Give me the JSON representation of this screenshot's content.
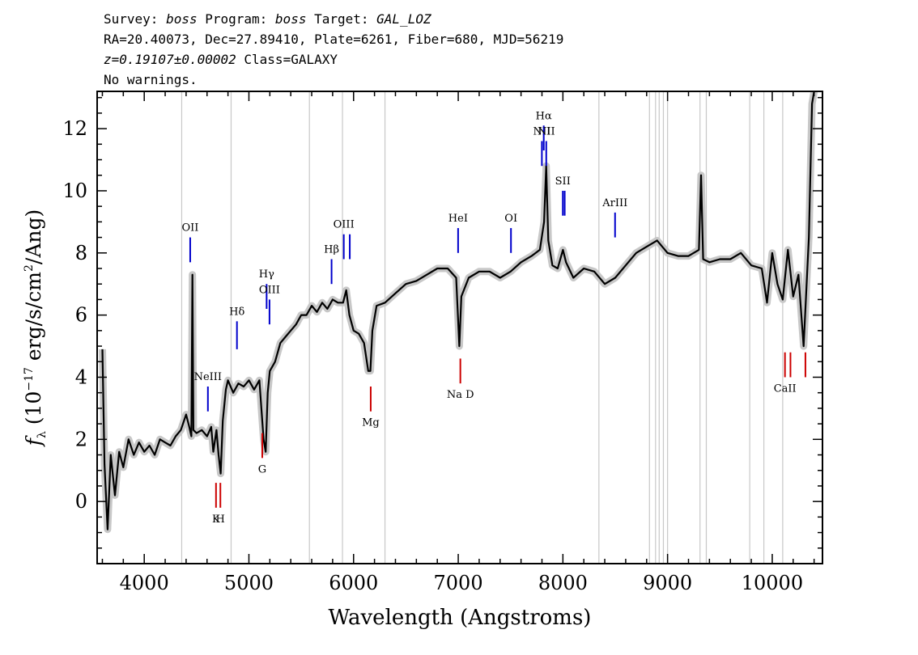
{
  "header": {
    "line1": {
      "survey_label": "Survey: ",
      "survey": "boss",
      "program_label": " Program: ",
      "program": "boss",
      "target_label": " Target: ",
      "target": "GAL_LOZ"
    },
    "line2": "RA=20.40073, Dec=27.89410, Plate=6261, Fiber=680, MJD=56219",
    "line3": {
      "z": "z=0.19107±0.00002",
      "class": " Class=GALAXY"
    },
    "line4": "No warnings."
  },
  "chart_data": {
    "type": "line",
    "xlabel": "Wavelength (Angstroms)",
    "ylabel": "f_λ (10^-17 erg/s/cm^2/Ang)",
    "xlim": [
      3550,
      10480
    ],
    "ylim": [
      -2,
      13.2
    ],
    "xticks": [
      4000,
      5000,
      6000,
      7000,
      8000,
      9000,
      10000
    ],
    "yticks": [
      0,
      2,
      4,
      6,
      8,
      10,
      12
    ],
    "grid": false,
    "series": [
      {
        "color": "#000000",
        "points": [
          [
            3600,
            4.9
          ],
          [
            3620,
            1.2
          ],
          [
            3650,
            -0.9
          ],
          [
            3680,
            1.5
          ],
          [
            3720,
            0.2
          ],
          [
            3760,
            1.6
          ],
          [
            3800,
            1.1
          ],
          [
            3850,
            2.0
          ],
          [
            3900,
            1.5
          ],
          [
            3950,
            1.9
          ],
          [
            4000,
            1.6
          ],
          [
            4050,
            1.8
          ],
          [
            4100,
            1.5
          ],
          [
            4150,
            2.0
          ],
          [
            4200,
            1.9
          ],
          [
            4250,
            1.8
          ],
          [
            4300,
            2.1
          ],
          [
            4350,
            2.3
          ],
          [
            4400,
            2.8
          ],
          [
            4430,
            2.4
          ],
          [
            4450,
            2.1
          ],
          [
            4460,
            7.3
          ],
          [
            4470,
            2.3
          ],
          [
            4500,
            2.2
          ],
          [
            4550,
            2.3
          ],
          [
            4600,
            2.1
          ],
          [
            4640,
            2.4
          ],
          [
            4660,
            1.6
          ],
          [
            4690,
            2.3
          ],
          [
            4710,
            1.5
          ],
          [
            4730,
            0.9
          ],
          [
            4750,
            2.6
          ],
          [
            4780,
            3.6
          ],
          [
            4800,
            3.9
          ],
          [
            4850,
            3.5
          ],
          [
            4900,
            3.8
          ],
          [
            4950,
            3.7
          ],
          [
            5000,
            3.9
          ],
          [
            5050,
            3.6
          ],
          [
            5100,
            3.9
          ],
          [
            5140,
            2.0
          ],
          [
            5160,
            1.6
          ],
          [
            5180,
            3.5
          ],
          [
            5200,
            4.2
          ],
          [
            5250,
            4.5
          ],
          [
            5300,
            5.1
          ],
          [
            5350,
            5.3
          ],
          [
            5400,
            5.5
          ],
          [
            5450,
            5.7
          ],
          [
            5500,
            6.0
          ],
          [
            5550,
            6.0
          ],
          [
            5600,
            6.3
          ],
          [
            5650,
            6.1
          ],
          [
            5700,
            6.4
          ],
          [
            5750,
            6.2
          ],
          [
            5800,
            6.5
          ],
          [
            5850,
            6.4
          ],
          [
            5900,
            6.4
          ],
          [
            5930,
            6.8
          ],
          [
            5960,
            6.0
          ],
          [
            6000,
            5.5
          ],
          [
            6050,
            5.4
          ],
          [
            6100,
            5.1
          ],
          [
            6140,
            4.2
          ],
          [
            6160,
            4.2
          ],
          [
            6180,
            5.5
          ],
          [
            6220,
            6.3
          ],
          [
            6300,
            6.4
          ],
          [
            6400,
            6.7
          ],
          [
            6500,
            7.0
          ],
          [
            6600,
            7.1
          ],
          [
            6700,
            7.3
          ],
          [
            6800,
            7.5
          ],
          [
            6900,
            7.5
          ],
          [
            6980,
            7.2
          ],
          [
            7010,
            5.0
          ],
          [
            7030,
            6.6
          ],
          [
            7100,
            7.2
          ],
          [
            7200,
            7.4
          ],
          [
            7300,
            7.4
          ],
          [
            7400,
            7.2
          ],
          [
            7500,
            7.4
          ],
          [
            7600,
            7.7
          ],
          [
            7700,
            7.9
          ],
          [
            7780,
            8.1
          ],
          [
            7820,
            9.0
          ],
          [
            7840,
            10.8
          ],
          [
            7860,
            8.4
          ],
          [
            7900,
            7.6
          ],
          [
            7950,
            7.5
          ],
          [
            8000,
            8.1
          ],
          [
            8030,
            7.7
          ],
          [
            8100,
            7.2
          ],
          [
            8200,
            7.5
          ],
          [
            8300,
            7.4
          ],
          [
            8400,
            7.0
          ],
          [
            8500,
            7.2
          ],
          [
            8600,
            7.6
          ],
          [
            8700,
            8.0
          ],
          [
            8800,
            8.2
          ],
          [
            8900,
            8.4
          ],
          [
            9000,
            8.0
          ],
          [
            9100,
            7.9
          ],
          [
            9200,
            7.9
          ],
          [
            9300,
            8.1
          ],
          [
            9320,
            10.5
          ],
          [
            9340,
            7.8
          ],
          [
            9400,
            7.7
          ],
          [
            9500,
            7.8
          ],
          [
            9600,
            7.8
          ],
          [
            9700,
            8.0
          ],
          [
            9800,
            7.6
          ],
          [
            9900,
            7.5
          ],
          [
            9950,
            6.4
          ],
          [
            10000,
            8.0
          ],
          [
            10050,
            7.0
          ],
          [
            10100,
            6.5
          ],
          [
            10150,
            8.1
          ],
          [
            10200,
            6.6
          ],
          [
            10250,
            7.3
          ],
          [
            10300,
            5.0
          ],
          [
            10350,
            8.5
          ],
          [
            10380,
            12.8
          ],
          [
            10400,
            13.2
          ]
        ]
      }
    ],
    "error_band_color": "#c8c8c8",
    "sky_lines": [
      4358,
      4830,
      5578,
      5894,
      6300,
      8344,
      8827,
      8885,
      8920,
      8960,
      9000,
      9310,
      9370,
      9785,
      9920,
      10100
    ],
    "emission_lines": [
      {
        "label": "OII",
        "x": 3727,
        "y0": 8.5,
        "y1": 7.7,
        "color": "#0000cc"
      },
      {
        "label": "NeIII",
        "x": 3869,
        "y0": 3.7,
        "y1": 2.9,
        "color": "#0000cc"
      },
      {
        "label": "Hδ",
        "x": 4102,
        "y0": 5.8,
        "y1": 4.9,
        "color": "#0000cc"
      },
      {
        "label": "Hγ",
        "x": 4340,
        "y0": 7.0,
        "y1": 6.2,
        "color": "#0000cc"
      },
      {
        "label": "OIII",
        "x": 4363,
        "y0": 6.5,
        "y1": 5.7,
        "color": "#0000cc"
      },
      {
        "label": "Hβ",
        "x": 4861,
        "y0": 7.8,
        "y1": 7.0,
        "color": "#0000cc"
      },
      {
        "label": "OIII",
        "x": 4959,
        "y0": 8.6,
        "y1": 7.8,
        "color": "#0000cc"
      },
      {
        "label": "",
        "x": 5007,
        "y0": 8.6,
        "y1": 7.8,
        "color": "#0000cc"
      },
      {
        "label": "HeI",
        "x": 5876,
        "y0": 8.8,
        "y1": 8.0,
        "color": "#0000cc"
      },
      {
        "label": "OI",
        "x": 6300,
        "y0": 8.8,
        "y1": 8.0,
        "color": "#0000cc"
      },
      {
        "label": "NII",
        "x": 6548,
        "y0": 11.6,
        "y1": 10.8,
        "color": "#0000cc"
      },
      {
        "label": "Hα",
        "x": 6563,
        "y0": 12.1,
        "y1": 11.3,
        "color": "#0000cc"
      },
      {
        "label": "NII",
        "x": 6583,
        "y0": 11.6,
        "y1": 10.8,
        "color": "#0000cc"
      },
      {
        "label": "SII",
        "x": 6716,
        "y0": 10.0,
        "y1": 9.2,
        "color": "#0000cc"
      },
      {
        "label": "",
        "x": 6731,
        "y0": 10.0,
        "y1": 9.2,
        "color": "#0000cc"
      },
      {
        "label": "ArIII",
        "x": 7135,
        "y0": 9.3,
        "y1": 8.5,
        "color": "#0000cc"
      }
    ],
    "absorption_lines": [
      {
        "label": "K",
        "x": 3934,
        "y0": 0.6,
        "y1": -0.2,
        "color": "#cc0000"
      },
      {
        "label": "H",
        "x": 3969,
        "y0": 0.6,
        "y1": -0.2,
        "color": "#cc0000"
      },
      {
        "label": "G",
        "x": 4305,
        "y0": 2.2,
        "y1": 1.4,
        "color": "#cc0000"
      },
      {
        "label": "Mg",
        "x": 5175,
        "y0": 3.7,
        "y1": 2.9,
        "color": "#cc0000"
      },
      {
        "label": "Na D",
        "x": 5894,
        "y0": 4.6,
        "y1": 3.8,
        "color": "#cc0000"
      },
      {
        "label": "CaII",
        "x": 8498,
        "y0": 4.8,
        "y1": 4.0,
        "color": "#cc0000"
      },
      {
        "label": "",
        "x": 8542,
        "y0": 4.8,
        "y1": 4.0,
        "color": "#cc0000"
      },
      {
        "label": "",
        "x": 8662,
        "y0": 4.8,
        "y1": 4.0,
        "color": "#cc0000"
      }
    ],
    "redshift_factor": 1.19107
  }
}
